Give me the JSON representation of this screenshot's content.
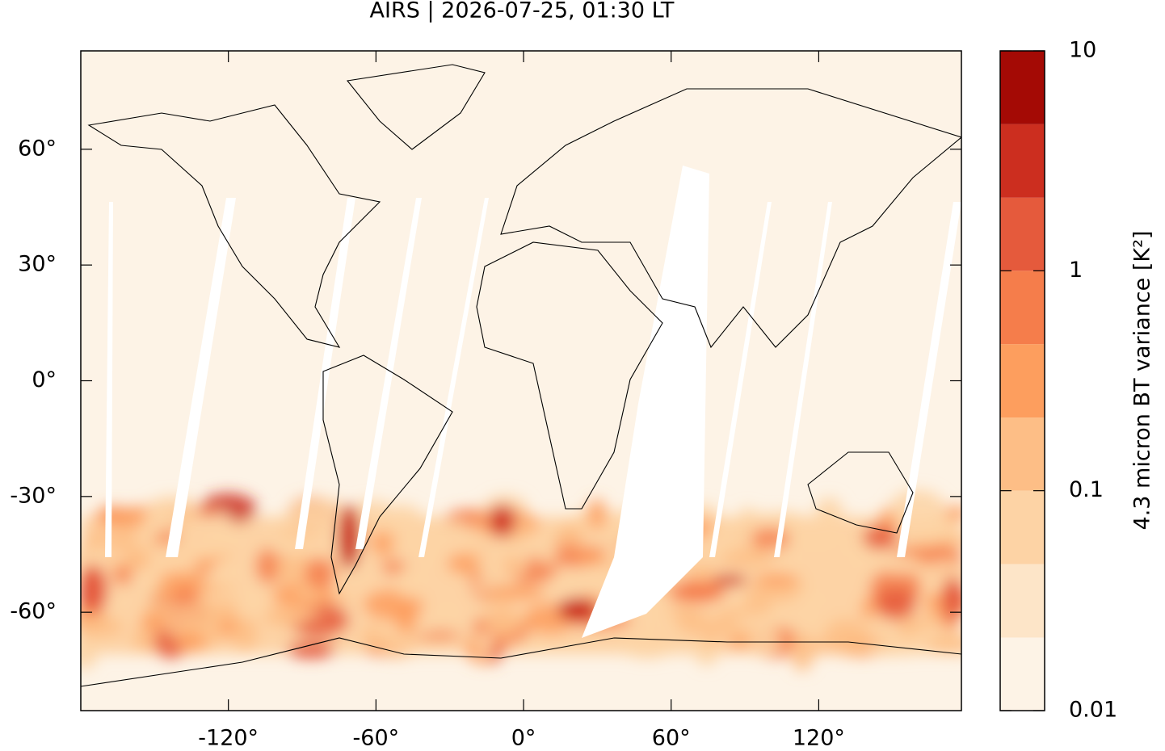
{
  "chart_data": {
    "type": "map",
    "title": "AIRS | 2026-07-25, 01:30 LT",
    "xlim": [
      -180,
      178
    ],
    "ylim": [
      -85.5,
      85.5
    ],
    "xticks": [
      {
        "value": -120,
        "label": "-120°"
      },
      {
        "value": -60,
        "label": "-60°"
      },
      {
        "value": 0,
        "label": "0°"
      },
      {
        "value": 60,
        "label": "60°"
      },
      {
        "value": 120,
        "label": "120°"
      }
    ],
    "yticks": [
      {
        "value": 60,
        "label": "60°"
      },
      {
        "value": 30,
        "label": "30°"
      },
      {
        "value": 0,
        "label": "0°"
      },
      {
        "value": -30,
        "label": "-30°"
      },
      {
        "value": -60,
        "label": "-60°"
      }
    ],
    "colorbar": {
      "label": "4.3 micron BT variance [K²]",
      "log": true,
      "lim": [
        0.01,
        10
      ],
      "levels": [
        0.01,
        0.0215,
        0.0464,
        0.1,
        0.215,
        0.464,
        1,
        2.15,
        4.64,
        10
      ],
      "colors": [
        "#fdf3e6",
        "#fde5c8",
        "#fdd3a5",
        "#fdbe86",
        "#fd9e5e",
        "#f57d4b",
        "#e55a3c",
        "#cc2e1f",
        "#a40a05"
      ],
      "ticks": [
        10,
        1,
        0.1,
        0.01
      ]
    }
  }
}
